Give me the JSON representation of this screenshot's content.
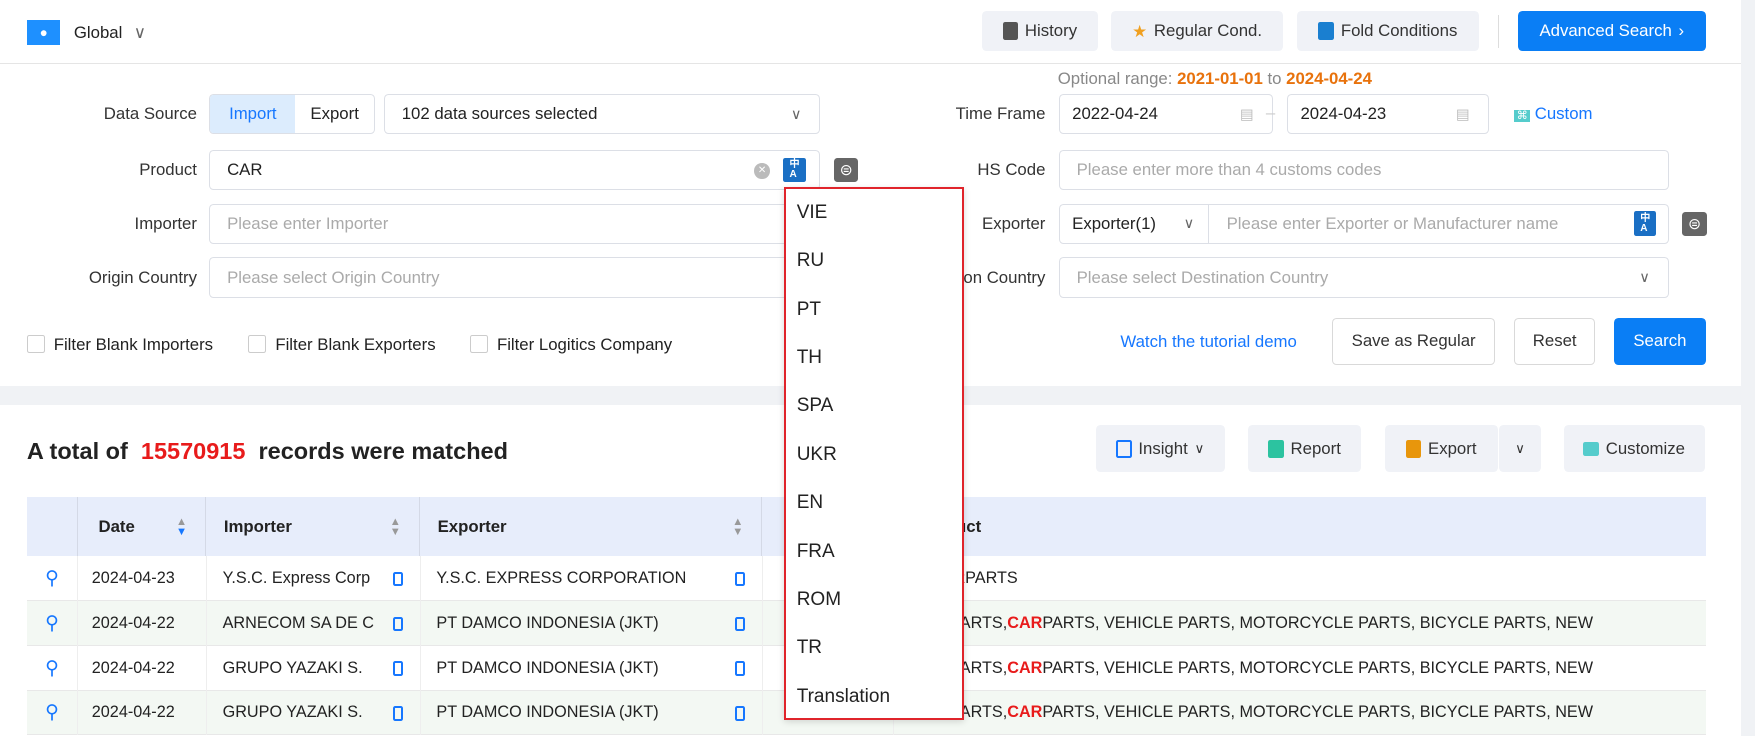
{
  "header": {
    "region": "Global",
    "history": "History",
    "regular": "Regular Cond.",
    "fold": "Fold Conditions",
    "advanced": "Advanced Search"
  },
  "form": {
    "optional_range_label": "Optional range:",
    "range_start": "2021-01-01",
    "range_to": "to",
    "range_end": "2024-04-24",
    "data_source_label": "Data Source",
    "import": "Import",
    "export": "Export",
    "data_sources": "102 data sources selected",
    "time_frame_label": "Time Frame",
    "date_from": "2022-04-24",
    "date_to": "2024-04-23",
    "custom": "Custom",
    "product_label": "Product",
    "product_value": "CAR",
    "hs_label": "HS Code",
    "hs_placeholder": "Please enter more than 4 customs codes",
    "importer_label": "Importer",
    "importer_placeholder": "Please enter Importer",
    "exporter_label": "Exporter",
    "exporter_select": "Exporter(1)",
    "exporter_placeholder": "Please enter Exporter or Manufacturer name",
    "origin_label": "Origin Country",
    "origin_placeholder": "Please select Origin Country",
    "dest_label": "Destination Country",
    "dest_placeholder": "Please select Destination Country",
    "filter_importers": "Filter Blank Importers",
    "filter_exporters": "Filter Blank Exporters",
    "filter_logistics": "Filter Logitics Company",
    "tutorial": "Watch the tutorial demo",
    "save_regular": "Save as Regular",
    "reset": "Reset",
    "search": "Search"
  },
  "results": {
    "prefix": "A total of",
    "count": "15570915",
    "suffix": "records were matched",
    "insight": "Insight",
    "report": "Report",
    "export": "Export",
    "customize": "Customize"
  },
  "table": {
    "headers": {
      "date": "Date",
      "importer": "Importer",
      "exporter": "Exporter",
      "product": "Product"
    },
    "rows": [
      {
        "date": "2024-04-23",
        "importer": "Y.S.C. Express Corp",
        "exporter": "Y.S.C. EXPRESS CORPORATION",
        "p1": "",
        "hl": "CAR",
        "p2": " PARTS"
      },
      {
        "date": "2024-04-22",
        "importer": "ARNECOM SA DE C",
        "exporter": "PT DAMCO INDONESIA (JKT)",
        "p1": "PARTS, ",
        "hl": "CAR",
        "p2": " PARTS, VEHICLE PARTS, MOTORCYCLE PARTS, BICYCLE PARTS, NEW"
      },
      {
        "date": "2024-04-22",
        "importer": "GRUPO YAZAKI S.",
        "exporter": "PT DAMCO INDONESIA (JKT)",
        "p1": "PARTS, ",
        "hl": "CAR",
        "p2": " PARTS, VEHICLE PARTS, MOTORCYCLE PARTS, BICYCLE PARTS, NEW"
      },
      {
        "date": "2024-04-22",
        "importer": "GRUPO YAZAKI S.",
        "exporter": "PT DAMCO INDONESIA (JKT)",
        "p1": "PARTS, ",
        "hl": "CAR",
        "p2": " PARTS, VEHICLE PARTS, MOTORCYCLE PARTS, BICYCLE PARTS, NEW"
      }
    ]
  },
  "language_menu": [
    "VIE",
    "RU",
    "PT",
    "TH",
    "SPA",
    "UKR",
    "EN",
    "FRA",
    "ROM",
    "TR",
    "Translation"
  ],
  "colors": {
    "primary": "#0a7ef5",
    "highlight": "#e81b1b",
    "range": "#e8720c",
    "menu_border": "#e0242b"
  }
}
